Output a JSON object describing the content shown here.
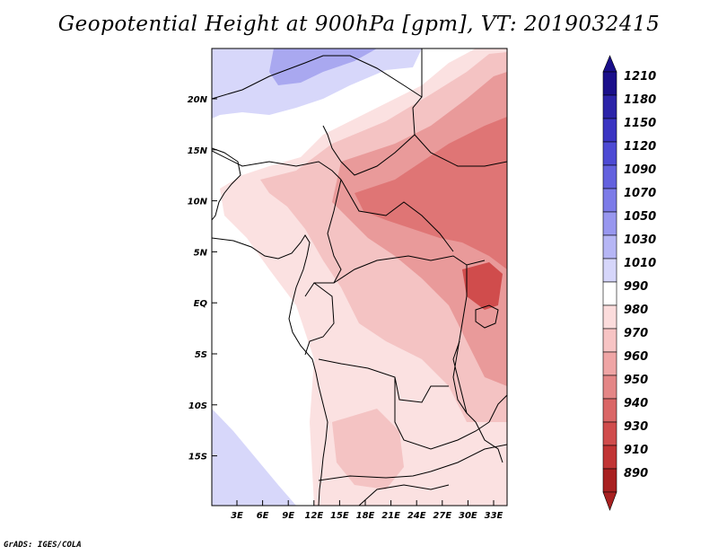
{
  "title": "Geopotential Height at 900hPa [gpm], VT: 2019032415",
  "footer": "GrADS: IGES/COLA",
  "map": {
    "lat_labels": [
      "20N",
      "15N",
      "10N",
      "5N",
      "EQ",
      "5S",
      "10S",
      "15S"
    ],
    "lon_labels": [
      "3E",
      "6E",
      "9E",
      "12E",
      "15E",
      "18E",
      "21E",
      "24E",
      "27E",
      "30E",
      "33E"
    ]
  },
  "colorbar": {
    "levels": [
      "1210",
      "1180",
      "1150",
      "1120",
      "1090",
      "1070",
      "1050",
      "1030",
      "1010",
      "990",
      "980",
      "970",
      "960",
      "950",
      "940",
      "930",
      "910",
      "890"
    ],
    "colors": [
      "#1a0f8a",
      "#2b23a8",
      "#3a34c2",
      "#4d4ad4",
      "#6361de",
      "#7c7be8",
      "#9897ef",
      "#b6b6f5",
      "#d6d6fa",
      "#ffffff",
      "#fbdcdc",
      "#f7c4c4",
      "#efa5a5",
      "#e48686",
      "#da6666",
      "#d04c4c",
      "#c13434",
      "#a82020"
    ]
  },
  "colors": {
    "low_blue": "#d7d7fa",
    "blue_mid": "#a9a8f0",
    "pink_light": "#fbe1e1",
    "pink": "#f4c3c3",
    "red_mid": "#e99a9a",
    "red_dark": "#df7575"
  }
}
